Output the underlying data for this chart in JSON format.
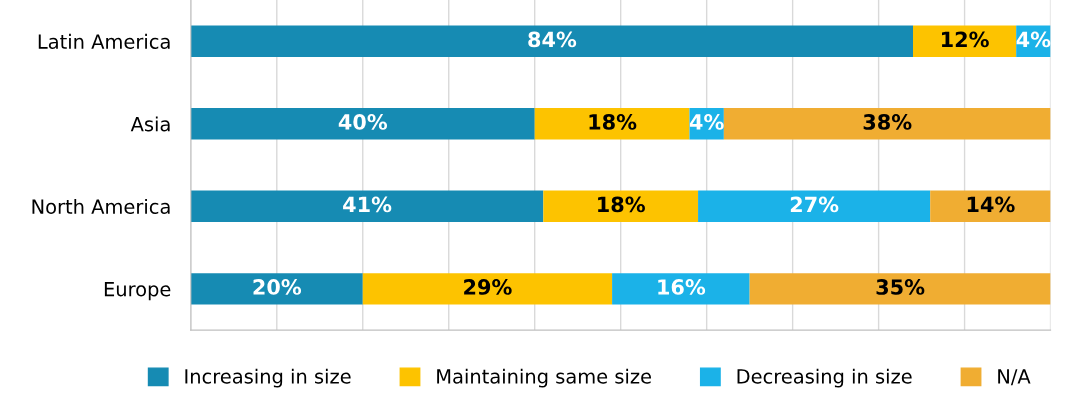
{
  "chart_data": {
    "type": "bar",
    "orientation": "horizontal",
    "stacked": true,
    "categories": [
      "Latin America",
      "Asia",
      "North America",
      "Europe"
    ],
    "series": [
      {
        "name": "Increasing in size",
        "color": "#168bb3",
        "values": [
          84,
          40,
          41,
          20
        ],
        "value_labels": [
          "84%",
          "40%",
          "41%",
          "20%"
        ]
      },
      {
        "name": "Maintaining same size",
        "color": "#fdc300",
        "values": [
          12,
          18,
          18,
          29
        ],
        "value_labels": [
          "12%",
          "18%",
          "18%",
          "29%"
        ]
      },
      {
        "name": "Decreasing in size",
        "color": "#1bb2e8",
        "values": [
          4,
          4,
          27,
          16
        ],
        "value_labels": [
          "4%",
          "4%",
          "27%",
          "16%"
        ]
      },
      {
        "name": "N/A",
        "color": "#f0ad32",
        "values": [
          null,
          38,
          14,
          35
        ],
        "value_labels": [
          null,
          "38%",
          "14%",
          "35%"
        ]
      }
    ],
    "xlim": [
      0,
      100
    ],
    "xticks": [
      {
        "value": 0,
        "label": null
      },
      {
        "value": 10,
        "label": null
      },
      {
        "value": 20,
        "label": null
      },
      {
        "value": 30,
        "label": null
      },
      {
        "value": 40,
        "label": null
      },
      {
        "value": 50,
        "label": null
      },
      {
        "value": 60,
        "label": null
      },
      {
        "value": 70,
        "label": null
      },
      {
        "value": 80,
        "label": null
      },
      {
        "value": 90,
        "label": null
      },
      {
        "value": 100,
        "label": null
      }
    ],
    "tick_labels": "y",
    "grid": "x",
    "legend": "bottom"
  }
}
